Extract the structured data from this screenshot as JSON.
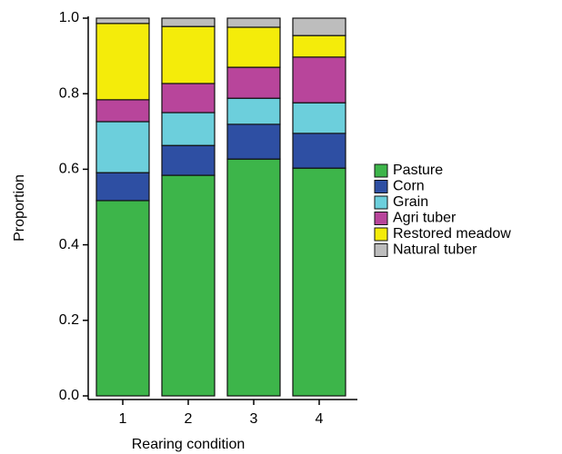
{
  "chart_data": {
    "type": "stacked-bar",
    "x_label": "Rearing condition",
    "y_label": "Proportion",
    "categories": [
      "1",
      "2",
      "3",
      "4"
    ],
    "series": [
      {
        "name": "Pasture",
        "color": "#3db54a",
        "values": [
          0.517,
          0.584,
          0.627,
          0.603
        ]
      },
      {
        "name": "Corn",
        "color": "#2e4fa3",
        "values": [
          0.074,
          0.079,
          0.092,
          0.092
        ]
      },
      {
        "name": "Grain",
        "color": "#6ccfdc",
        "values": [
          0.135,
          0.087,
          0.069,
          0.081
        ]
      },
      {
        "name": "Agri tuber",
        "color": "#b8459b",
        "values": [
          0.058,
          0.077,
          0.082,
          0.121
        ]
      },
      {
        "name": "Restored meadow",
        "color": "#f4ec0a",
        "values": [
          0.202,
          0.151,
          0.106,
          0.057
        ]
      },
      {
        "name": "Natural tuber",
        "color": "#bdbdbd",
        "values": [
          0.014,
          0.022,
          0.024,
          0.046
        ]
      }
    ],
    "ylim": [
      0,
      1
    ],
    "yticks": [
      {
        "value": 0,
        "label": "0.0"
      },
      0.2,
      0.4,
      0.6,
      0.8,
      {
        "value": 1,
        "label": "1.0"
      }
    ]
  }
}
